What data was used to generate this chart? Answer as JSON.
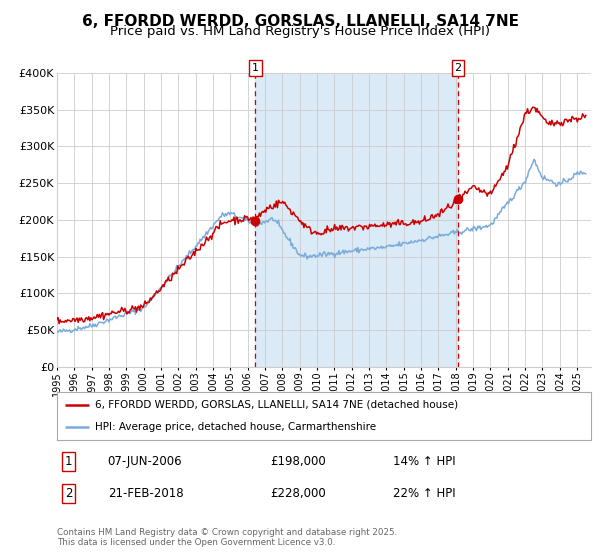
{
  "title": "6, FFORDD WERDD, GORSLAS, LLANELLI, SA14 7NE",
  "subtitle": "Price paid vs. HM Land Registry's House Price Index (HPI)",
  "red_label": "6, FFORDD WERDD, GORSLAS, LLANELLI, SA14 7NE (detached house)",
  "blue_label": "HPI: Average price, detached house, Carmarthenshire",
  "annotation1_date": "07-JUN-2006",
  "annotation1_price": "£198,000",
  "annotation1_hpi": "14% ↑ HPI",
  "annotation2_date": "21-FEB-2018",
  "annotation2_price": "£228,000",
  "annotation2_hpi": "22% ↑ HPI",
  "footer": "Contains HM Land Registry data © Crown copyright and database right 2025.\nThis data is licensed under the Open Government Licence v3.0.",
  "ylim": [
    0,
    400000
  ],
  "yticks": [
    0,
    50000,
    100000,
    150000,
    200000,
    250000,
    300000,
    350000,
    400000
  ],
  "ytick_labels": [
    "£0",
    "£50K",
    "£100K",
    "£150K",
    "£200K",
    "£250K",
    "£300K",
    "£350K",
    "£400K"
  ],
  "background_color": "#ffffff",
  "plot_bg_color": "#ffffff",
  "shaded_region_color": "#daeaf7",
  "red_color": "#cc0000",
  "blue_color": "#7aabdb",
  "grid_color": "#cccccc",
  "annotation_line_color": "#cc0000",
  "title_fontsize": 11,
  "subtitle_fontsize": 9.5,
  "year_start": 1995,
  "year_end": 2025,
  "sale1_year": 2006.44,
  "sale2_year": 2018.13,
  "sale1_price": 198000,
  "sale2_price": 228000
}
